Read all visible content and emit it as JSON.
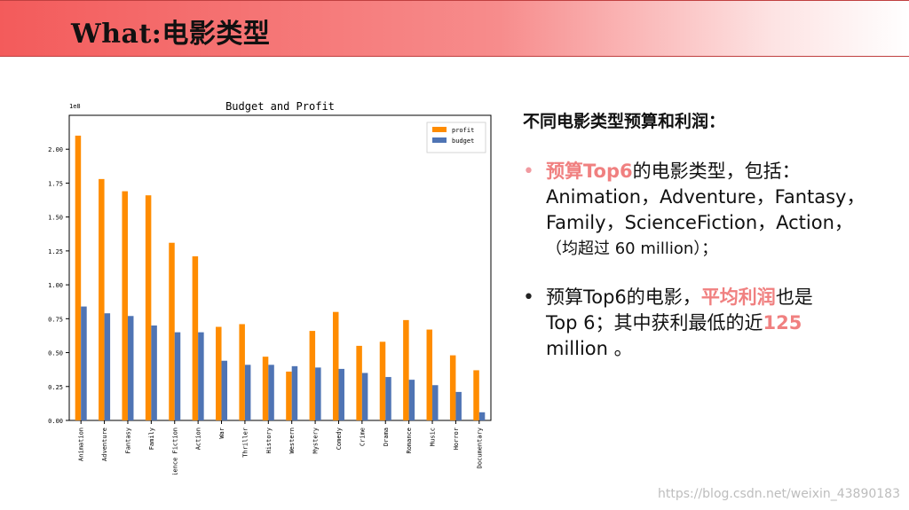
{
  "header": {
    "title": "What:电影类型"
  },
  "panel": {
    "title": "不同电影类型预算和利润：",
    "bullet1": {
      "hl": "预算Top6",
      "rest": "的电影类型，包括：",
      "line2": "Animation，Adventure，Fantasy，",
      "line3": "Family，ScienceFiction，Action，",
      "line4": "（均超过 60 million）；"
    },
    "bullet2": {
      "pre": "预算Top6的电影，",
      "hl": "平均利润",
      "post": "也是",
      "line2_pre": "Top 6；其中获利最低的近",
      "line2_hl": "125",
      "line3": "million 。"
    }
  },
  "watermark": "https://blog.csdn.net/weixin_43890183",
  "chart_data": {
    "type": "bar",
    "title": "Budget and Profit",
    "scale_label": "1e8",
    "categories": [
      "Animation",
      "Adventure",
      "Fantasy",
      "Family",
      "Science Fiction",
      "Action",
      "War",
      "Thriller",
      "History",
      "Western",
      "Mystery",
      "Comedy",
      "Crime",
      "Drama",
      "Romance",
      "Music",
      "Horror",
      "Documentary"
    ],
    "series": [
      {
        "name": "profit",
        "color": "#ff8c00",
        "values": [
          2.1,
          1.78,
          1.69,
          1.66,
          1.31,
          1.21,
          0.69,
          0.71,
          0.47,
          0.36,
          0.66,
          0.8,
          0.55,
          0.58,
          0.74,
          0.67,
          0.48,
          0.37
        ]
      },
      {
        "name": "budget",
        "color": "#4f74b4",
        "values": [
          0.84,
          0.79,
          0.77,
          0.7,
          0.65,
          0.65,
          0.44,
          0.41,
          0.41,
          0.4,
          0.39,
          0.38,
          0.35,
          0.32,
          0.3,
          0.26,
          0.21,
          0.06
        ]
      }
    ],
    "ylim": [
      0,
      2.25
    ],
    "yticks": [
      "0.00",
      "0.25",
      "0.50",
      "0.75",
      "1.00",
      "1.25",
      "1.50",
      "1.75",
      "2.00"
    ],
    "legend": "top-right",
    "grid": false
  }
}
